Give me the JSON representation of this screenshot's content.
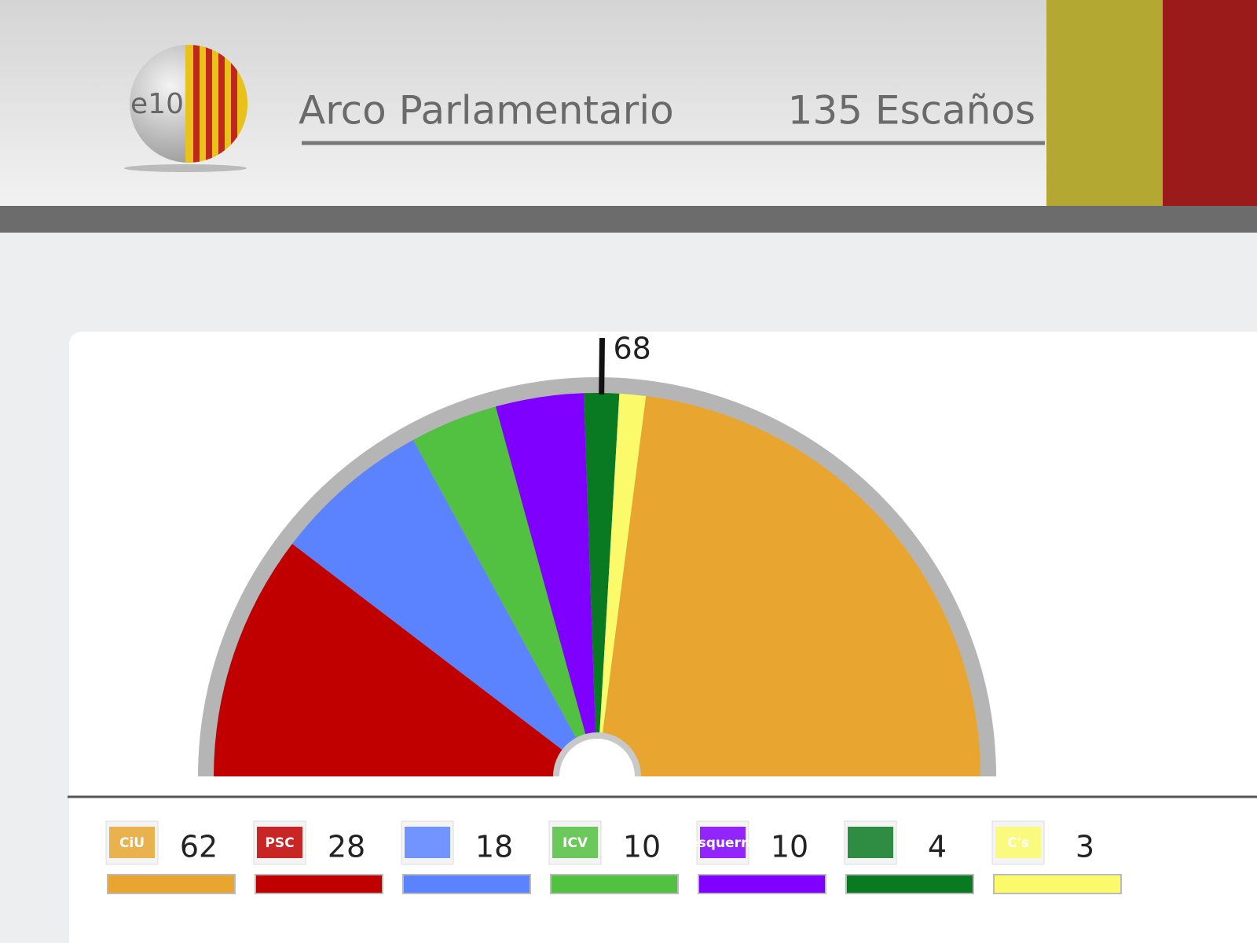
{
  "header": {
    "title": "Arco Parlamentario",
    "subtitle": "135 Escaños",
    "logo": "e10"
  },
  "chart_data": {
    "type": "parliament",
    "total": 135,
    "majority": 68,
    "categories": [
      "CiU",
      "PSC",
      null,
      "ICV",
      "esquerra",
      null,
      "C's"
    ],
    "values": [
      62,
      28,
      18,
      10,
      10,
      4,
      3
    ],
    "colors": [
      "#e8a630",
      "#c00000",
      "#5b82ff",
      "#52c040",
      "#8000ff",
      "#0a7a22",
      "#fafa6a"
    ]
  }
}
